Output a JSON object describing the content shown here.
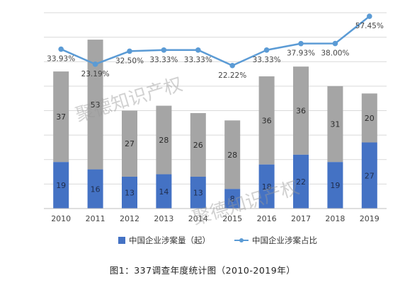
{
  "colors": {
    "bar_involved": "#4472c4",
    "bar_total": "#a5a5a5",
    "line_ratio": "#5b9bd5",
    "grid": "#d9d9d9",
    "watermark": "#9a9a9a"
  },
  "watermark_text": "聚德知识产权",
  "caption": "图1：337调查年度统计图（2010-2019年）",
  "chart_data": {
    "type": "bar",
    "categories": [
      "2010",
      "2011",
      "2012",
      "2013",
      "2014",
      "2015",
      "2016",
      "2017",
      "2018",
      "2019"
    ],
    "series": [
      {
        "name": "中国企业涉案量（起）",
        "kind": "stacked-bar",
        "values": [
          19,
          16,
          13,
          14,
          13,
          8,
          18,
          22,
          19,
          27
        ]
      },
      {
        "name": "",
        "kind": "stacked-bar",
        "values": [
          37,
          53,
          27,
          28,
          26,
          28,
          36,
          36,
          31,
          20
        ]
      },
      {
        "name": "中国企业涉案占比",
        "kind": "line",
        "values": [
          33.93,
          23.19,
          32.5,
          33.33,
          33.33,
          22.22,
          33.33,
          37.93,
          38.0,
          57.45
        ],
        "labels": [
          "33.93%",
          "23.19%",
          "32.50%",
          "33.33%",
          "33.33%",
          "22.22%",
          "33.33%",
          "37.93%",
          "38.00%",
          "57.45%"
        ]
      }
    ],
    "legend": [
      {
        "label": "中国企业涉案量（起）",
        "marker": "square"
      },
      {
        "label": "中国企业涉案占比",
        "marker": "line-dot"
      }
    ],
    "legend_position": "bottom",
    "grid": true,
    "ylim_bars": [
      0,
      80
    ],
    "ylim_line": [
      -80,
      60
    ]
  }
}
